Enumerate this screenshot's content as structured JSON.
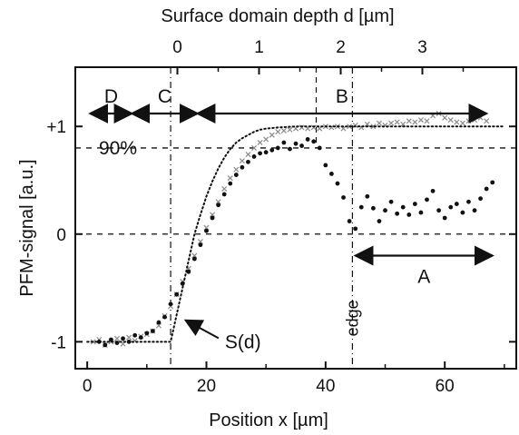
{
  "chart_data": {
    "type": "scatter",
    "title": "",
    "xlabel": "Position x [µm]",
    "ylabel": "PFM-signal [a.u.]",
    "top_xlabel": "Surface domain depth d [µm]",
    "xlim": [
      -2,
      72
    ],
    "ylim": [
      -1.25,
      1.55
    ],
    "top_xlim_depth": [
      -1.25,
      4.15
    ],
    "x_ticks": [
      0,
      20,
      40,
      60
    ],
    "y_ticks": [
      -1,
      0,
      1
    ],
    "y_tick_labels": [
      "-1",
      "0",
      "+1"
    ],
    "top_ticks": [
      0,
      1,
      2,
      3
    ],
    "grid": false,
    "reference_lines": {
      "horizontal_dashed": [
        0,
        0.8
      ],
      "vertical_dashdot": [
        14,
        44.5
      ],
      "vertical_dashed_depth": [
        1.7
      ]
    },
    "annotations": {
      "percent_label": "90%",
      "edge_label": "edge",
      "fit_label": "S(d)",
      "regions": [
        {
          "label": "D",
          "x_start": 0.5,
          "x_end": 7.5
        },
        {
          "label": "C",
          "x_start": 7.5,
          "x_end": 18.5
        },
        {
          "label": "B",
          "x_start": 18.5,
          "x_end": 67
        },
        {
          "label": "A",
          "x_start": 45,
          "x_end": 68
        }
      ]
    },
    "series": [
      {
        "marker": "x",
        "color": "#8a8a8a",
        "points": [
          [
            1,
            -1.0
          ],
          [
            2,
            -0.98
          ],
          [
            3,
            -1.03
          ],
          [
            4,
            -1.0
          ],
          [
            5,
            -0.97
          ],
          [
            6,
            -1.02
          ],
          [
            7,
            -0.96
          ],
          [
            8,
            -0.99
          ],
          [
            9,
            -0.95
          ],
          [
            10,
            -0.93
          ],
          [
            11,
            -0.9
          ],
          [
            12,
            -0.85
          ],
          [
            13,
            -0.76
          ],
          [
            14,
            -0.67
          ],
          [
            15,
            -0.56
          ],
          [
            16,
            -0.44
          ],
          [
            17,
            -0.32
          ],
          [
            18,
            -0.2
          ],
          [
            19,
            -0.07
          ],
          [
            20,
            0.06
          ],
          [
            21,
            0.18
          ],
          [
            22,
            0.3
          ],
          [
            23,
            0.42
          ],
          [
            24,
            0.52
          ],
          [
            25,
            0.6
          ],
          [
            26,
            0.68
          ],
          [
            27,
            0.74
          ],
          [
            28,
            0.8
          ],
          [
            29,
            0.85
          ],
          [
            30,
            0.88
          ],
          [
            31,
            0.92
          ],
          [
            32,
            0.95
          ],
          [
            33,
            0.96
          ],
          [
            34,
            0.97
          ],
          [
            35,
            0.98
          ],
          [
            36,
            0.99
          ],
          [
            37,
            0.98
          ],
          [
            38,
            0.99
          ],
          [
            39,
            0.98
          ],
          [
            40,
            1.0
          ],
          [
            41,
            0.99
          ],
          [
            42,
            1.0
          ],
          [
            43,
            0.98
          ],
          [
            44,
            1.0
          ],
          [
            45,
            1.01
          ],
          [
            46,
            0.99
          ],
          [
            47,
            1.02
          ],
          [
            48,
            1.0
          ],
          [
            49,
            1.03
          ],
          [
            50,
            1.01
          ],
          [
            51,
            1.03
          ],
          [
            52,
            1.04
          ],
          [
            53,
            1.02
          ],
          [
            54,
            1.05
          ],
          [
            55,
            1.04
          ],
          [
            56,
            1.06
          ],
          [
            57,
            1.05
          ],
          [
            58,
            1.1
          ],
          [
            59,
            1.12
          ],
          [
            60,
            1.08
          ],
          [
            61,
            1.06
          ],
          [
            62,
            1.04
          ],
          [
            63,
            1.03
          ],
          [
            64,
            1.05
          ],
          [
            65,
            1.06
          ],
          [
            66,
            1.08
          ],
          [
            67,
            1.05
          ]
        ]
      },
      {
        "marker": "dot",
        "color": "#111111",
        "points": [
          [
            2,
            -1.0
          ],
          [
            3,
            -1.03
          ],
          [
            4,
            -0.98
          ],
          [
            5,
            -1.01
          ],
          [
            6,
            -0.97
          ],
          [
            7,
            -1.0
          ],
          [
            8,
            -0.94
          ],
          [
            9,
            -0.96
          ],
          [
            10,
            -0.92
          ],
          [
            11,
            -0.9
          ],
          [
            12,
            -0.82
          ],
          [
            13,
            -0.77
          ],
          [
            14,
            -0.65
          ],
          [
            15,
            -0.56
          ],
          [
            16,
            -0.46
          ],
          [
            17,
            -0.35
          ],
          [
            18,
            -0.23
          ],
          [
            19,
            -0.1
          ],
          [
            20,
            0.03
          ],
          [
            21,
            0.15
          ],
          [
            22,
            0.27
          ],
          [
            23,
            0.37
          ],
          [
            24,
            0.47
          ],
          [
            25,
            0.55
          ],
          [
            26,
            0.62
          ],
          [
            27,
            0.67
          ],
          [
            28,
            0.72
          ],
          [
            29,
            0.75
          ],
          [
            30,
            0.76
          ],
          [
            31,
            0.78
          ],
          [
            32,
            0.8
          ],
          [
            33,
            0.85
          ],
          [
            34,
            0.79
          ],
          [
            35,
            0.84
          ],
          [
            36,
            0.82
          ],
          [
            37,
            0.88
          ],
          [
            38,
            0.86
          ],
          [
            39,
            0.8
          ],
          [
            40,
            0.64
          ],
          [
            41,
            0.56
          ],
          [
            42,
            0.47
          ],
          [
            43,
            0.34
          ],
          [
            44,
            0.12
          ],
          [
            45,
            0.05
          ],
          [
            46,
            0.25
          ],
          [
            47,
            0.35
          ],
          [
            48,
            0.24
          ],
          [
            49,
            0.12
          ],
          [
            50,
            0.22
          ],
          [
            51,
            0.3
          ],
          [
            52,
            0.19
          ],
          [
            53,
            0.25
          ],
          [
            54,
            0.18
          ],
          [
            55,
            0.28
          ],
          [
            56,
            0.2
          ],
          [
            57,
            0.32
          ],
          [
            58,
            0.4
          ],
          [
            59,
            0.22
          ],
          [
            60,
            0.15
          ],
          [
            61,
            0.25
          ],
          [
            62,
            0.28
          ],
          [
            63,
            0.2
          ],
          [
            64,
            0.3
          ],
          [
            65,
            0.22
          ],
          [
            66,
            0.33
          ],
          [
            67,
            0.42
          ],
          [
            68,
            0.48
          ]
        ]
      },
      {
        "marker": "dotted-line",
        "color": "#111111",
        "points": [
          [
            0,
            -1.0
          ],
          [
            14,
            -1.0
          ],
          [
            15,
            -0.75
          ],
          [
            16,
            -0.5
          ],
          [
            17,
            -0.25
          ],
          [
            18,
            0.0
          ],
          [
            19,
            0.18
          ],
          [
            20,
            0.35
          ],
          [
            21,
            0.49
          ],
          [
            22,
            0.61
          ],
          [
            23,
            0.71
          ],
          [
            24,
            0.79
          ],
          [
            25,
            0.85
          ],
          [
            26,
            0.89
          ],
          [
            27,
            0.92
          ],
          [
            28,
            0.95
          ],
          [
            29,
            0.97
          ],
          [
            30,
            0.98
          ],
          [
            32,
            0.99
          ],
          [
            35,
            1.0
          ],
          [
            70,
            1.0
          ]
        ]
      }
    ]
  }
}
